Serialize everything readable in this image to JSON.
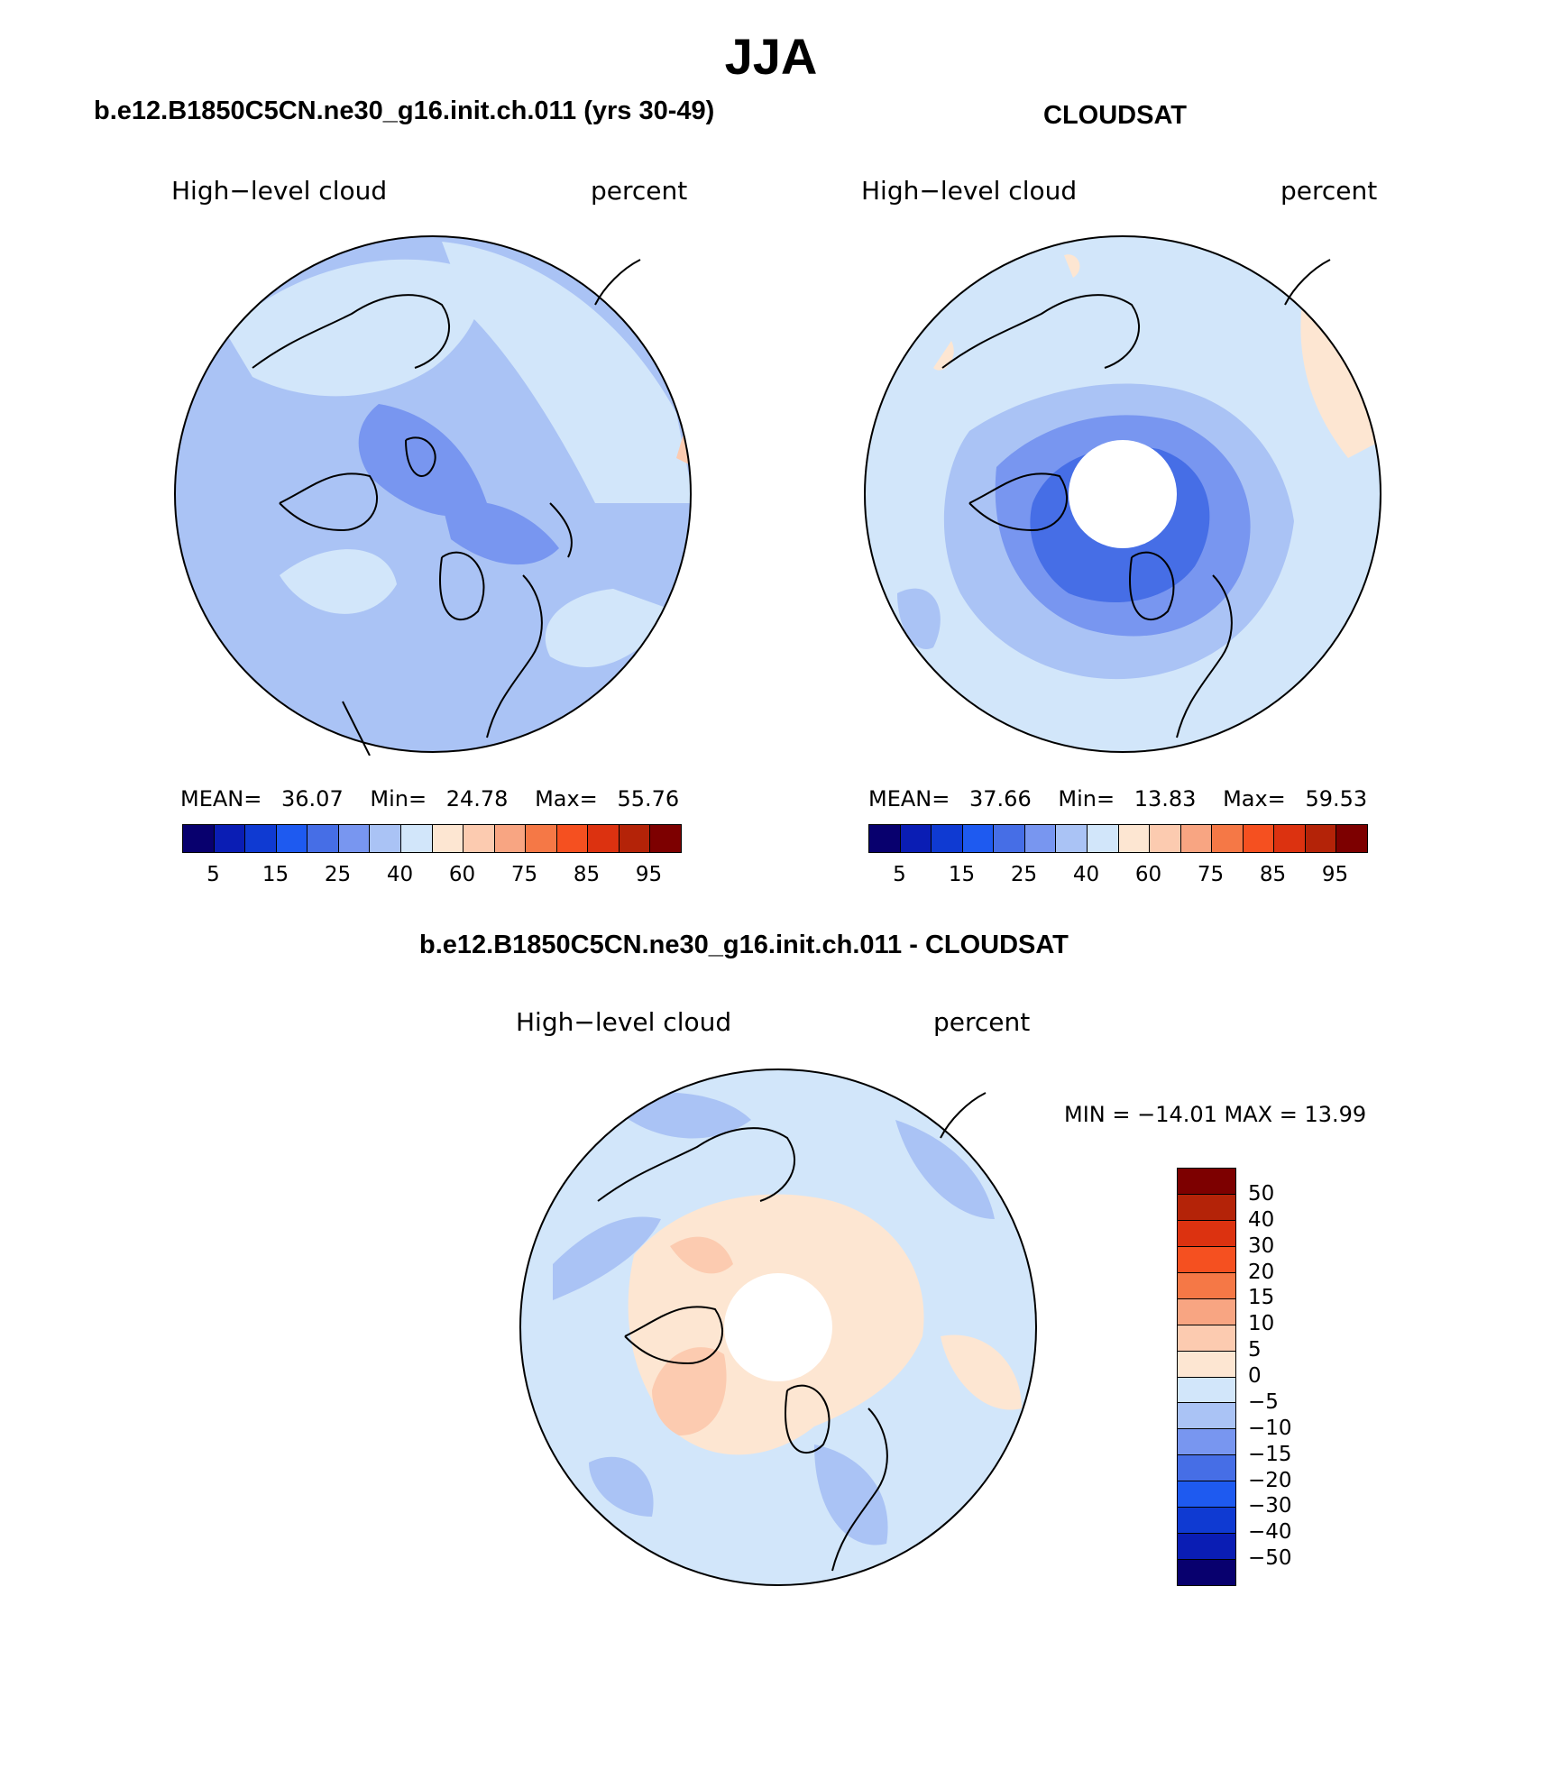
{
  "figure": {
    "title": "JJA"
  },
  "panels": {
    "model": {
      "title": "b.e12.B1850C5CN.ne30_g16.init.ch.011 (yrs 30-49)",
      "variable": "High−level cloud",
      "units": "percent",
      "mean_label": "MEAN=",
      "mean": "36.07",
      "min_label": "Min=",
      "min": "24.78",
      "max_label": "Max=",
      "max": "55.76"
    },
    "obs": {
      "title": "CLOUDSAT",
      "variable": "High−level cloud",
      "units": "percent",
      "mean_label": "MEAN=",
      "mean": "37.66",
      "min_label": "Min=",
      "min": "13.83",
      "max_label": "Max=",
      "max": "59.53"
    },
    "diff": {
      "title": "b.e12.B1850C5CN.ne30_g16.init.ch.011 - CLOUDSAT",
      "variable": "High−level cloud",
      "units": "percent",
      "minmax_text": "MIN = −14.01 MAX =   13.99"
    }
  },
  "colorbars": {
    "abs": {
      "colors": [
        "#08006e",
        "#0a1db4",
        "#0f3ad2",
        "#1e5af0",
        "#466ee6",
        "#7896f0",
        "#aac3f5",
        "#d2e6fa",
        "#fde6d2",
        "#fccbb0",
        "#f8a582",
        "#f57846",
        "#f55020",
        "#dc3210",
        "#b42308",
        "#7d0000"
      ],
      "tick_labels": [
        "5",
        "15",
        "25",
        "40",
        "60",
        "75",
        "85",
        "95"
      ]
    },
    "diff": {
      "colors": [
        "#7d0000",
        "#b42308",
        "#dc3210",
        "#f55020",
        "#f57846",
        "#f8a582",
        "#fccbb0",
        "#fde6d2",
        "#d2e6fa",
        "#aac3f5",
        "#7896f0",
        "#466ee6",
        "#1e5af0",
        "#0f3ad2",
        "#0a1db4",
        "#08006e"
      ],
      "tick_labels": [
        "50",
        "40",
        "30",
        "20",
        "15",
        "10",
        "5",
        "0",
        "−5",
        "−10",
        "−15",
        "−20",
        "−30",
        "−40",
        "−50"
      ]
    }
  }
}
